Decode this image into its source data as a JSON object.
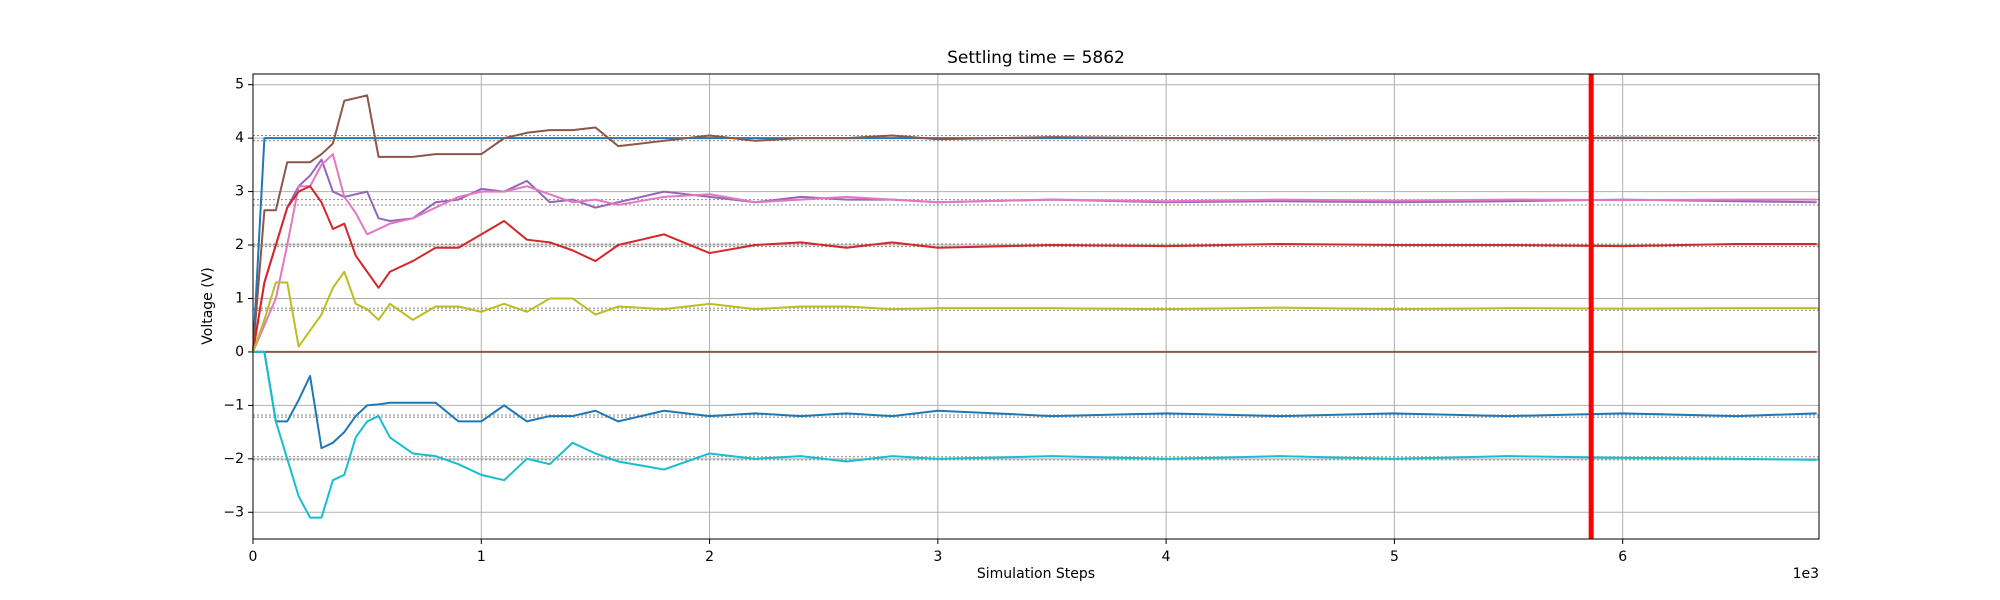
{
  "chart_data": {
    "type": "line",
    "title": "Settling time = 5862",
    "xlabel": "Simulation Steps",
    "ylabel": "Voltage (V)",
    "x_offset_label": "1e3",
    "x": [
      0,
      50,
      100,
      150,
      200,
      250,
      300,
      350,
      400,
      450,
      500,
      550,
      600,
      700,
      800,
      900,
      1000,
      1100,
      1200,
      1300,
      1400,
      1500,
      1600,
      1800,
      2000,
      2200,
      2400,
      2600,
      2800,
      3000,
      3500,
      4000,
      4500,
      5000,
      5500,
      6000,
      6500,
      6850
    ],
    "series": [
      {
        "color": "#8c564b",
        "values": [
          0,
          0,
          0,
          0,
          0,
          0,
          0,
          0,
          0,
          0,
          0,
          0,
          0,
          0,
          0,
          0,
          0,
          0,
          0,
          0,
          0,
          0,
          0,
          0,
          0,
          0,
          0,
          0,
          0,
          0,
          0,
          0,
          0,
          0,
          0,
          0,
          0,
          0
        ]
      },
      {
        "color": "#1f77b4",
        "values": [
          0,
          4,
          4,
          4,
          4,
          4,
          4,
          4,
          4,
          4,
          4,
          4,
          4,
          4,
          4,
          4,
          4,
          4,
          4,
          4,
          4,
          4,
          4,
          4,
          4,
          4,
          4,
          4,
          4,
          4,
          4,
          4,
          4,
          4,
          4,
          4,
          4,
          4
        ]
      },
      {
        "color": "#8c564b",
        "values": [
          0,
          2.65,
          2.65,
          3.55,
          3.55,
          3.55,
          3.7,
          3.9,
          4.7,
          4.75,
          4.8,
          3.65,
          3.65,
          3.65,
          3.7,
          3.7,
          3.7,
          4.0,
          4.1,
          4.15,
          4.15,
          4.2,
          3.85,
          3.95,
          4.05,
          3.95,
          4.0,
          4.0,
          4.05,
          3.98,
          4.02,
          4.0,
          3.99,
          4.0,
          4.0,
          4.01,
          4.0,
          4.0
        ]
      },
      {
        "color": "#9467bd",
        "values": [
          0,
          1.3,
          2.0,
          2.7,
          3.1,
          3.3,
          3.6,
          3.0,
          2.9,
          2.95,
          3.0,
          2.5,
          2.45,
          2.5,
          2.8,
          2.85,
          3.05,
          3.0,
          3.2,
          2.8,
          2.85,
          2.7,
          2.8,
          3.0,
          2.9,
          2.8,
          2.9,
          2.85,
          2.85,
          2.8,
          2.85,
          2.8,
          2.82,
          2.8,
          2.82,
          2.85,
          2.82,
          2.8
        ]
      },
      {
        "color": "#e377c2",
        "values": [
          0,
          0.5,
          1.0,
          2.0,
          3.1,
          3.1,
          3.5,
          3.7,
          2.9,
          2.6,
          2.2,
          2.3,
          2.4,
          2.5,
          2.7,
          2.9,
          3.0,
          3.0,
          3.1,
          2.95,
          2.8,
          2.85,
          2.75,
          2.9,
          2.95,
          2.8,
          2.85,
          2.9,
          2.85,
          2.8,
          2.85,
          2.82,
          2.85,
          2.83,
          2.85,
          2.84,
          2.85,
          2.85
        ]
      },
      {
        "color": "#d62728",
        "values": [
          0,
          1.3,
          2.0,
          2.7,
          3.0,
          3.1,
          2.8,
          2.3,
          2.4,
          1.8,
          1.5,
          1.2,
          1.5,
          1.7,
          1.95,
          1.95,
          2.2,
          2.45,
          2.1,
          2.05,
          1.9,
          1.7,
          2.0,
          2.2,
          1.85,
          2.0,
          2.05,
          1.95,
          2.05,
          1.95,
          2.0,
          1.98,
          2.02,
          2.0,
          2.0,
          1.98,
          2.02,
          2.02
        ]
      },
      {
        "color": "#bcbd22",
        "values": [
          0,
          0.6,
          1.3,
          1.3,
          0.1,
          0.4,
          0.7,
          1.2,
          1.5,
          0.9,
          0.8,
          0.6,
          0.9,
          0.6,
          0.85,
          0.85,
          0.75,
          0.9,
          0.75,
          1.0,
          1.0,
          0.7,
          0.85,
          0.8,
          0.9,
          0.8,
          0.85,
          0.85,
          0.8,
          0.82,
          0.82,
          0.8,
          0.83,
          0.8,
          0.82,
          0.81,
          0.82,
          0.82
        ]
      },
      {
        "color": "#1f77b4",
        "values": [
          0,
          0,
          -1.3,
          -1.3,
          -0.9,
          -0.45,
          -1.8,
          -1.7,
          -1.5,
          -1.2,
          -1.0,
          -0.98,
          -0.95,
          -0.95,
          -0.95,
          -1.3,
          -1.3,
          -1.0,
          -1.3,
          -1.2,
          -1.2,
          -1.1,
          -1.3,
          -1.1,
          -1.2,
          -1.15,
          -1.2,
          -1.15,
          -1.2,
          -1.1,
          -1.2,
          -1.15,
          -1.2,
          -1.15,
          -1.2,
          -1.15,
          -1.2,
          -1.15
        ]
      },
      {
        "color": "#17becf",
        "values": [
          0,
          0,
          -1.3,
          -2.0,
          -2.7,
          -3.1,
          -3.1,
          -2.4,
          -2.3,
          -1.6,
          -1.3,
          -1.2,
          -1.6,
          -1.9,
          -1.95,
          -2.1,
          -2.3,
          -2.4,
          -2.0,
          -2.1,
          -1.7,
          -1.9,
          -2.05,
          -2.2,
          -1.9,
          -2.0,
          -1.95,
          -2.05,
          -1.95,
          -2.0,
          -1.95,
          -2.0,
          -1.95,
          -2.0,
          -1.95,
          -1.98,
          -2.0,
          -2.02
        ]
      }
    ],
    "reference_lines": [
      4.05,
      3.95,
      2.85,
      2.75,
      2.02,
      1.97,
      0.82,
      0.78,
      -1.18,
      -1.22,
      -1.96,
      -2.02
    ],
    "settling_time": 5862,
    "settling_color": "#ff0000",
    "xlim": [
      0,
      6860
    ],
    "ylim": [
      -3.5,
      5.2
    ],
    "xticks": [
      0,
      {
        "value": 1000,
        "label": "1"
      },
      {
        "value": 2000,
        "label": "2"
      },
      {
        "value": 3000,
        "label": "3"
      },
      {
        "value": 4000,
        "label": "4"
      },
      {
        "value": 5000,
        "label": "5"
      },
      {
        "value": 6000,
        "label": "6"
      }
    ],
    "yticks": [
      {
        "value": -3,
        "label": "−3"
      },
      {
        "value": -2,
        "label": "−2"
      },
      {
        "value": -1,
        "label": "−1"
      },
      0,
      1,
      2,
      3,
      4,
      5
    ],
    "grid": true
  }
}
